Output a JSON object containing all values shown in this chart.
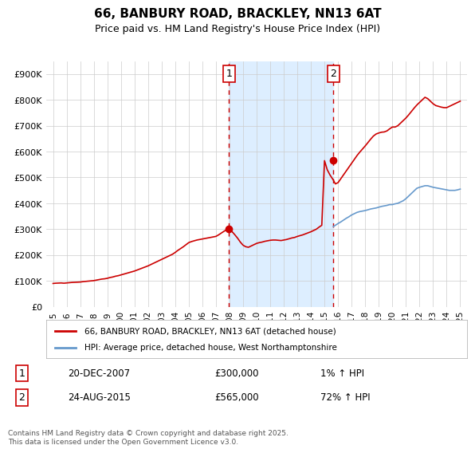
{
  "title": "66, BANBURY ROAD, BRACKLEY, NN13 6AT",
  "subtitle": "Price paid vs. HM Land Registry's House Price Index (HPI)",
  "title_fontsize": 11,
  "subtitle_fontsize": 9,
  "background_color": "#ffffff",
  "plot_bg_color": "#ffffff",
  "grid_color": "#cccccc",
  "ylabel_color": "#000000",
  "red_line_color": "#cc0000",
  "blue_line_color": "#6699cc",
  "shaded_region_color": "#ddeeff",
  "vline_color": "#cc0000",
  "marker1_x": 2007.97,
  "marker1_y": 300000,
  "marker2_x": 2015.65,
  "marker2_y": 565000,
  "legend_label_red": "66, BANBURY ROAD, BRACKLEY, NN13 6AT (detached house)",
  "legend_label_blue": "HPI: Average price, detached house, West Northamptonshire",
  "annotation1_label": "1",
  "annotation1_date": "20-DEC-2007",
  "annotation1_price": "£300,000",
  "annotation1_hpi": "1% ↑ HPI",
  "annotation2_label": "2",
  "annotation2_date": "24-AUG-2015",
  "annotation2_price": "£565,000",
  "annotation2_hpi": "72% ↑ HPI",
  "footer_text": "Contains HM Land Registry data © Crown copyright and database right 2025.\nThis data is licensed under the Open Government Licence v3.0.",
  "ylim": [
    0,
    950000
  ],
  "yticks": [
    0,
    100000,
    200000,
    300000,
    400000,
    500000,
    600000,
    700000,
    800000,
    900000
  ],
  "ytick_labels": [
    "£0",
    "£100K",
    "£200K",
    "£300K",
    "£400K",
    "£500K",
    "£600K",
    "£700K",
    "£800K",
    "£900K"
  ],
  "xlim": [
    1994.5,
    2025.5
  ],
  "xticks": [
    1995,
    1996,
    1997,
    1998,
    1999,
    2000,
    2001,
    2002,
    2003,
    2004,
    2005,
    2006,
    2007,
    2008,
    2009,
    2010,
    2011,
    2012,
    2013,
    2014,
    2015,
    2016,
    2017,
    2018,
    2019,
    2020,
    2021,
    2022,
    2023,
    2024,
    2025
  ],
  "red_x": [
    1995.0,
    1995.2,
    1995.4,
    1995.6,
    1995.8,
    1996.0,
    1996.2,
    1996.4,
    1996.6,
    1996.8,
    1997.0,
    1997.2,
    1997.4,
    1997.6,
    1997.8,
    1998.0,
    1998.2,
    1998.4,
    1998.6,
    1998.8,
    1999.0,
    1999.2,
    1999.4,
    1999.6,
    1999.8,
    2000.0,
    2000.2,
    2000.4,
    2000.6,
    2000.8,
    2001.0,
    2001.2,
    2001.4,
    2001.6,
    2001.8,
    2002.0,
    2002.2,
    2002.4,
    2002.6,
    2002.8,
    2003.0,
    2003.2,
    2003.4,
    2003.6,
    2003.8,
    2004.0,
    2004.2,
    2004.4,
    2004.6,
    2004.8,
    2005.0,
    2005.2,
    2005.4,
    2005.6,
    2005.8,
    2006.0,
    2006.2,
    2006.4,
    2006.6,
    2006.8,
    2007.0,
    2007.2,
    2007.4,
    2007.6,
    2007.8,
    2007.97,
    2008.2,
    2008.4,
    2008.6,
    2008.8,
    2009.0,
    2009.2,
    2009.4,
    2009.6,
    2009.8,
    2010.0,
    2010.2,
    2010.4,
    2010.6,
    2010.8,
    2011.0,
    2011.2,
    2011.4,
    2011.6,
    2011.8,
    2012.0,
    2012.2,
    2012.4,
    2012.6,
    2012.8,
    2013.0,
    2013.2,
    2013.4,
    2013.6,
    2013.8,
    2014.0,
    2014.2,
    2014.4,
    2014.6,
    2014.8,
    2015.0,
    2015.2,
    2015.4,
    2015.65,
    2015.8,
    2016.0,
    2016.2,
    2016.4,
    2016.6,
    2016.8,
    2017.0,
    2017.2,
    2017.4,
    2017.6,
    2017.8,
    2018.0,
    2018.2,
    2018.4,
    2018.6,
    2018.8,
    2019.0,
    2019.2,
    2019.4,
    2019.6,
    2019.8,
    2020.0,
    2020.2,
    2020.4,
    2020.6,
    2020.8,
    2021.0,
    2021.2,
    2021.4,
    2021.6,
    2021.8,
    2022.0,
    2022.2,
    2022.4,
    2022.6,
    2022.8,
    2023.0,
    2023.2,
    2023.4,
    2023.6,
    2023.8,
    2024.0,
    2024.2,
    2024.4,
    2024.6,
    2024.8,
    2025.0
  ],
  "red_y": [
    90000,
    91000,
    91500,
    92000,
    91000,
    92000,
    93000,
    94000,
    94500,
    95000,
    95500,
    97000,
    98000,
    99000,
    100000,
    101000,
    103000,
    105000,
    107000,
    108000,
    110000,
    113000,
    115000,
    118000,
    120000,
    123000,
    126000,
    129000,
    132000,
    135000,
    138000,
    142000,
    146000,
    150000,
    154000,
    158000,
    163000,
    168000,
    173000,
    178000,
    183000,
    188000,
    193000,
    198000,
    203000,
    210000,
    218000,
    225000,
    232000,
    240000,
    248000,
    252000,
    255000,
    258000,
    260000,
    262000,
    264000,
    266000,
    268000,
    270000,
    272000,
    278000,
    285000,
    292000,
    298000,
    300000,
    290000,
    278000,
    265000,
    250000,
    238000,
    232000,
    230000,
    235000,
    240000,
    245000,
    248000,
    250000,
    253000,
    255000,
    257000,
    258000,
    258000,
    257000,
    256000,
    258000,
    260000,
    263000,
    266000,
    268000,
    272000,
    275000,
    278000,
    282000,
    286000,
    290000,
    295000,
    300000,
    308000,
    315000,
    565000,
    530000,
    510000,
    490000,
    475000,
    480000,
    495000,
    510000,
    525000,
    540000,
    555000,
    570000,
    585000,
    598000,
    610000,
    622000,
    635000,
    648000,
    660000,
    668000,
    672000,
    675000,
    676000,
    680000,
    688000,
    695000,
    695000,
    700000,
    710000,
    720000,
    730000,
    742000,
    755000,
    768000,
    780000,
    790000,
    800000,
    810000,
    805000,
    795000,
    785000,
    778000,
    775000,
    772000,
    770000,
    770000,
    775000,
    780000,
    785000,
    790000,
    795000
  ],
  "blue_x": [
    2015.65,
    2015.8,
    2016.0,
    2016.2,
    2016.4,
    2016.6,
    2016.8,
    2017.0,
    2017.2,
    2017.4,
    2017.6,
    2017.8,
    2018.0,
    2018.2,
    2018.4,
    2018.6,
    2018.8,
    2019.0,
    2019.2,
    2019.4,
    2019.6,
    2019.8,
    2020.0,
    2020.2,
    2020.4,
    2020.6,
    2020.8,
    2021.0,
    2021.2,
    2021.4,
    2021.6,
    2021.8,
    2022.0,
    2022.2,
    2022.4,
    2022.6,
    2022.8,
    2023.0,
    2023.2,
    2023.4,
    2023.6,
    2023.8,
    2024.0,
    2024.2,
    2024.4,
    2024.6,
    2024.8,
    2025.0
  ],
  "blue_y": [
    310000,
    315000,
    322000,
    328000,
    335000,
    342000,
    348000,
    355000,
    360000,
    365000,
    368000,
    370000,
    372000,
    375000,
    378000,
    380000,
    382000,
    385000,
    388000,
    390000,
    392000,
    395000,
    395000,
    398000,
    400000,
    405000,
    410000,
    418000,
    428000,
    438000,
    448000,
    458000,
    462000,
    465000,
    468000,
    468000,
    465000,
    462000,
    460000,
    458000,
    456000,
    454000,
    452000,
    450000,
    450000,
    450000,
    452000,
    455000
  ]
}
